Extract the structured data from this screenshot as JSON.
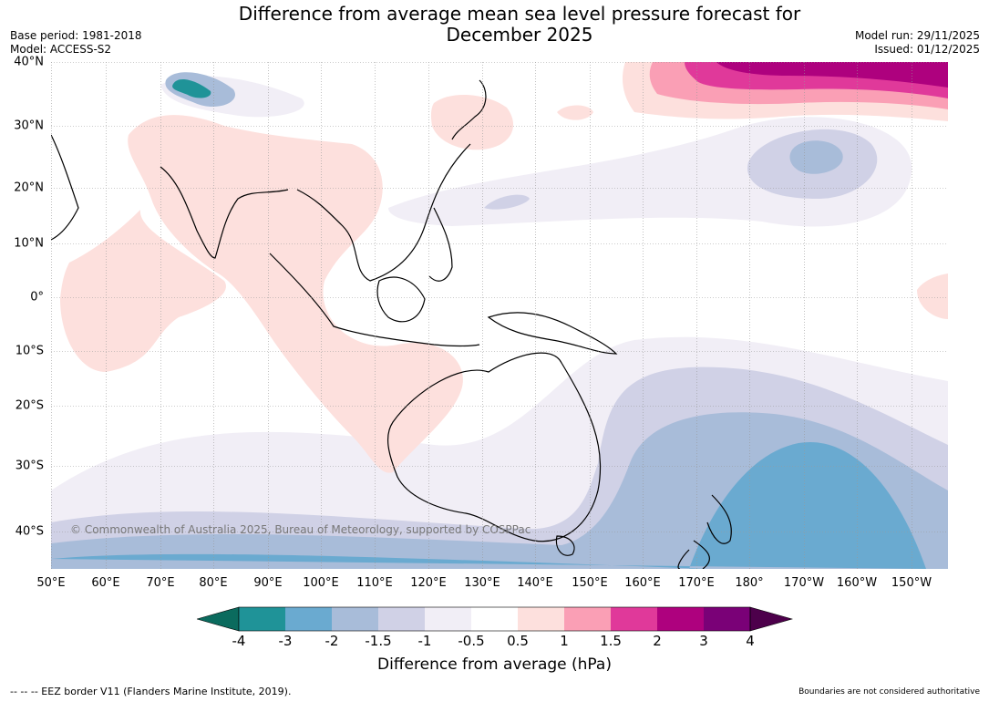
{
  "title": "Difference from average mean sea level pressure forecast for December 2025",
  "title_line1": "Difference from average mean sea level pressure forecast for",
  "title_line2": "December 2025",
  "meta_left": {
    "base_period": "Base period: 1981-2018",
    "model": "Model: ACCESS-S2"
  },
  "meta_right": {
    "model_run": "Model run: 29/11/2025",
    "issued": "Issued: 01/12/2025"
  },
  "lat_labels": [
    "40°N",
    "30°N",
    "20°N",
    "10°N",
    "0°",
    "10°S",
    "20°S",
    "30°S",
    "40°S"
  ],
  "lon_labels": [
    "50°E",
    "60°E",
    "70°E",
    "80°E",
    "90°E",
    "100°E",
    "110°E",
    "120°E",
    "130°E",
    "140°E",
    "150°E",
    "160°E",
    "170°E",
    "180°",
    "170°W",
    "160°W",
    "150°W"
  ],
  "copyright": "© Commonwealth of Australia 2025, Bureau of Meteorology, supported by COSPPac",
  "colorbar": {
    "ticks": [
      "-4",
      "-3",
      "-2",
      "-1.5",
      "-1",
      "-0.5",
      "0.5",
      "1",
      "1.5",
      "2",
      "3",
      "4"
    ],
    "colors": [
      "#1f9398",
      "#6aaad0",
      "#a8bcd9",
      "#d0d1e6",
      "#f1eef6",
      "#ffffff",
      "#fde0dd",
      "#fa9fb5",
      "#e0399a",
      "#ae017e",
      "#7a0177"
    ],
    "under_color": "#0b6b5e",
    "over_color": "#4d004b",
    "label": "Difference from average (hPa)"
  },
  "footer_left": "-- -- -- EEZ border V11 (Flanders Marine Institute, 2019).",
  "footer_right": "Boundaries are not considered authoritative",
  "colors": {
    "neg_0_5": "#f1eef6",
    "neg_1": "#d0d1e6",
    "neg_1_5": "#a8bcd9",
    "neg_2": "#6aaad0",
    "neg_3": "#1f9398",
    "pos_0_5": "#fde0dd",
    "pos_1": "#fa9fb5",
    "pos_1_5": "#e0399a",
    "pos_2": "#ae017e"
  }
}
